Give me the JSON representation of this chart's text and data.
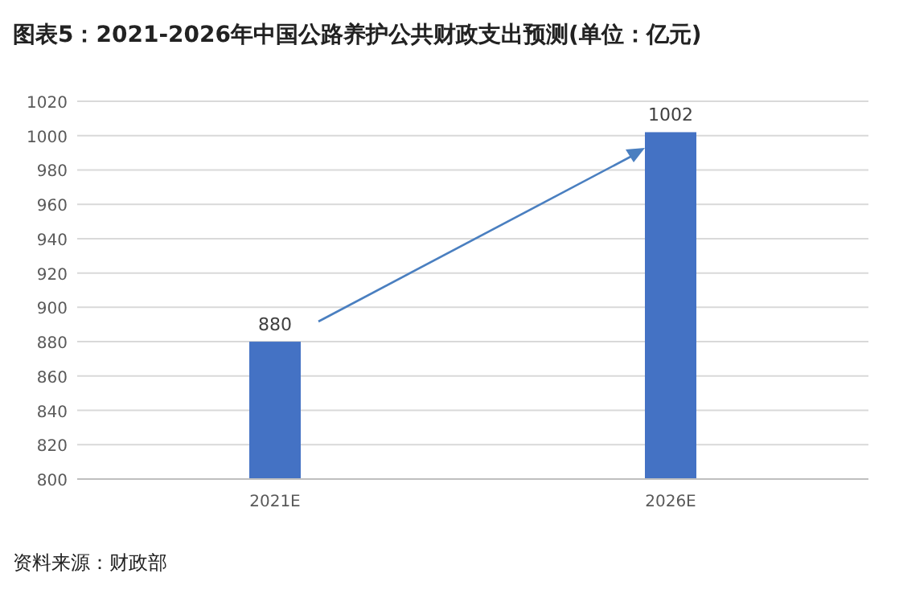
{
  "chart_data": {
    "type": "bar",
    "title": "图表5：2021-2026年中国公路养护公共财政支出预测(单位：亿元)",
    "categories": [
      "2021E",
      "2026E"
    ],
    "values": [
      880,
      1002
    ],
    "color": "#4472c4",
    "ylim": [
      800,
      1020
    ],
    "yticks": [
      800,
      820,
      840,
      860,
      880,
      900,
      920,
      940,
      960,
      980,
      1000,
      1020
    ],
    "grid": "y",
    "data_labels": true,
    "annotations": [
      "资料来源：财政部"
    ]
  }
}
